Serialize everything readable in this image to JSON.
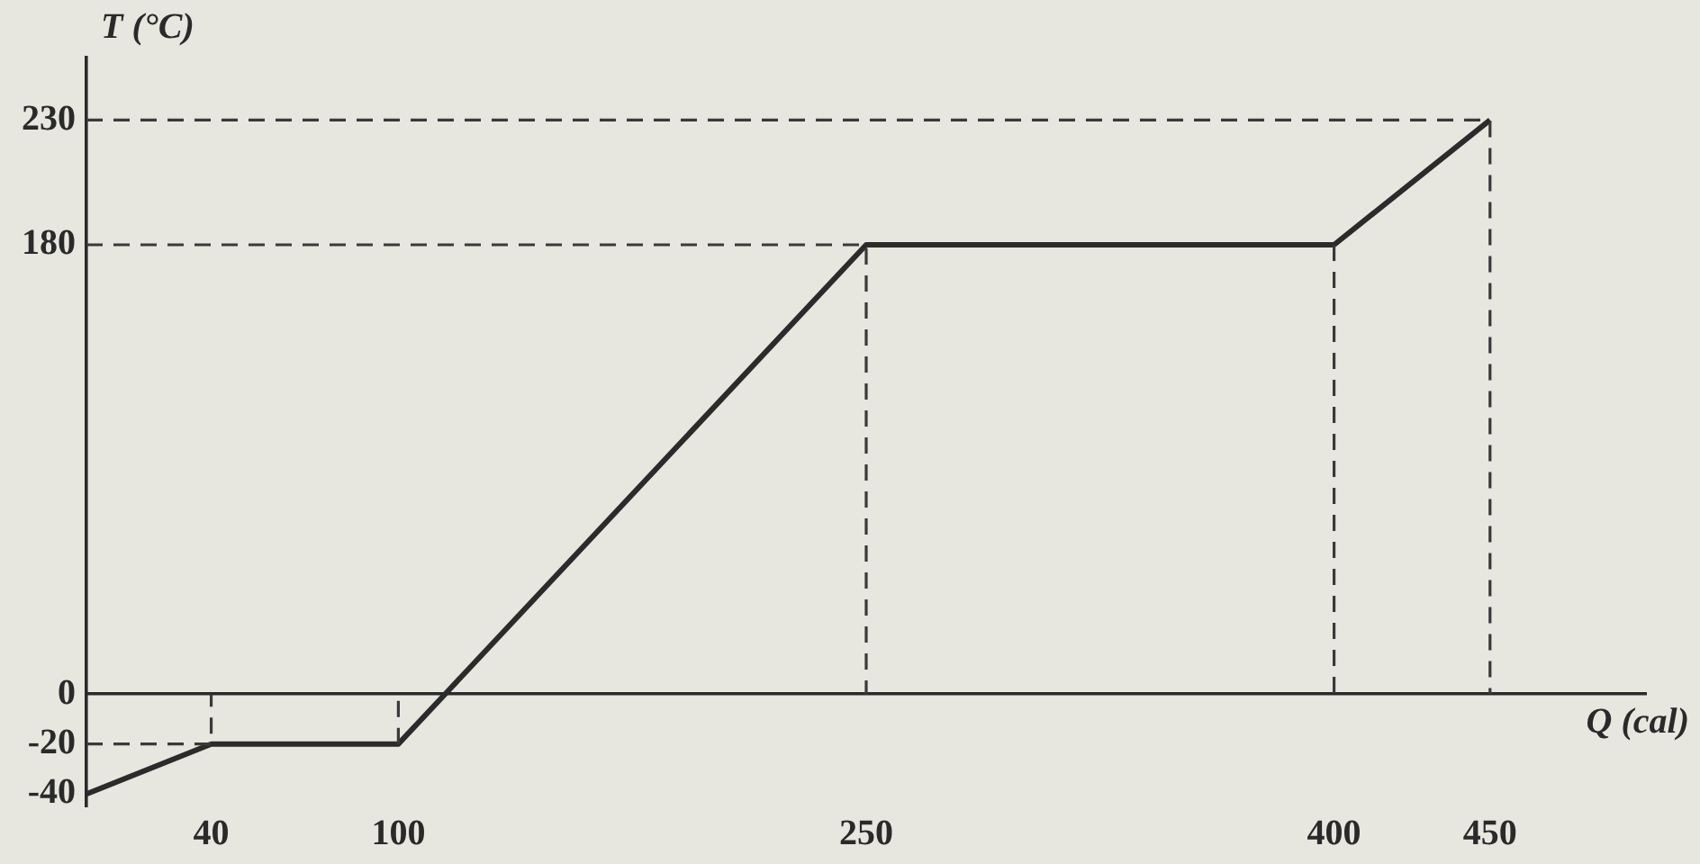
{
  "chart_data": {
    "type": "line",
    "xlabel": "Q (cal)",
    "ylabel": "T (°C)",
    "series": [
      {
        "color": "#2b2b2b",
        "x": [
          0,
          40,
          100,
          250,
          400,
          450
        ],
        "values": [
          -40,
          -20,
          -20,
          180,
          180,
          230
        ],
        "line_style": "solid"
      },
      {
        "color": "#3a3a3a",
        "x": [
          0,
          40,
          40
        ],
        "values": [
          -20,
          -20,
          0
        ],
        "line_style": "dashed"
      },
      {
        "color": "#3a3a3a",
        "x": [
          100,
          100
        ],
        "values": [
          -20,
          0
        ],
        "line_style": "dashed"
      },
      {
        "color": "#3a3a3a",
        "x": [
          0,
          250,
          250
        ],
        "values": [
          180,
          180,
          0
        ],
        "line_style": "dashed"
      },
      {
        "color": "#3a3a3a",
        "x": [
          400,
          400
        ],
        "values": [
          180,
          0
        ],
        "line_style": "dashed"
      },
      {
        "color": "#3a3a3a",
        "x": [
          0,
          450,
          450
        ],
        "values": [
          230,
          230,
          0
        ],
        "line_style": "dashed"
      }
    ],
    "xlim": [
      0,
      500
    ],
    "xticks": [
      40,
      100,
      250,
      400,
      450
    ],
    "ylim": [
      -45,
      255
    ],
    "yticks": [
      -40,
      -20,
      0,
      180,
      230
    ],
    "marker": "none"
  }
}
